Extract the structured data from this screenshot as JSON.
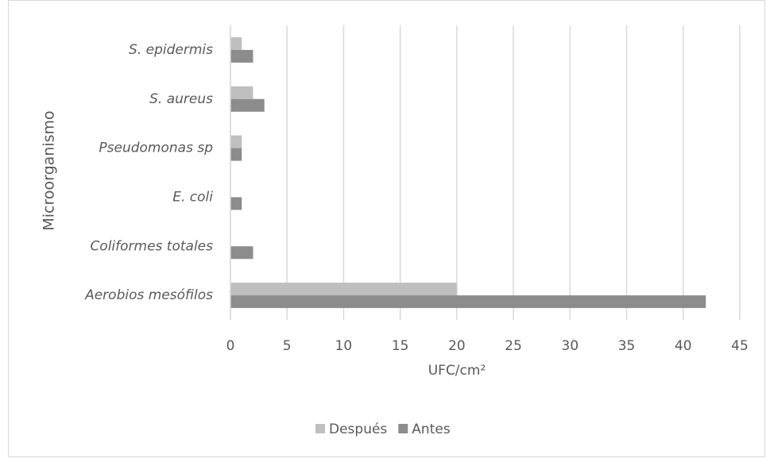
{
  "chart_data": {
    "type": "hbar",
    "categories": [
      "S. epidermis",
      "S. aureus",
      "Pseudomonas sp",
      "E. coli",
      "Coliformes totales",
      "Aerobios mesófilos"
    ],
    "series": [
      {
        "name": "Después",
        "color": "#bfbfbf",
        "values": [
          1,
          2,
          1,
          0,
          0,
          20
        ]
      },
      {
        "name": "Antes",
        "color": "#8c8c8c",
        "values": [
          2,
          3,
          1,
          1,
          2,
          42
        ]
      }
    ],
    "xlabel": "UFC/cm²",
    "ylabel": "Microorganismo",
    "xlim": [
      0,
      45
    ],
    "xticks": [
      0,
      5,
      10,
      15,
      20,
      25,
      30,
      35,
      40,
      45
    ],
    "grid": true,
    "legend": "bottom"
  }
}
